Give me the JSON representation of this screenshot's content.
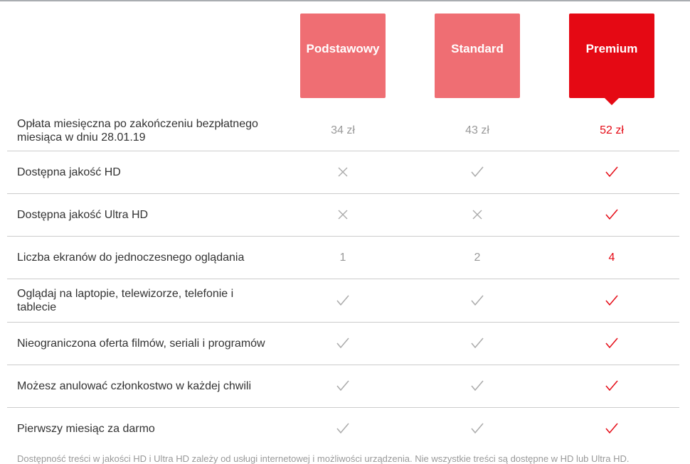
{
  "colors": {
    "plan": "#ef6e73",
    "selected": "#e50914",
    "muted": "#999999"
  },
  "plans": [
    {
      "name": "Podstawowy",
      "selected": false
    },
    {
      "name": "Standard",
      "selected": false
    },
    {
      "name": "Premium",
      "selected": true
    }
  ],
  "rows": [
    {
      "label": "Opłata miesięczna po zakończeniu bezpłatnego miesiąca w dniu 28.01.19",
      "values": [
        "34 zł",
        "43 zł",
        "52 zł"
      ]
    },
    {
      "label": "Dostępna jakość HD",
      "values": [
        "cross-icon",
        "check-icon",
        "check-icon"
      ]
    },
    {
      "label": "Dostępna jakość Ultra HD",
      "values": [
        "cross-icon",
        "cross-icon",
        "check-icon"
      ]
    },
    {
      "label": "Liczba ekranów do jednoczesnego oglądania",
      "values": [
        "1",
        "2",
        "4"
      ]
    },
    {
      "label": "Oglądaj na laptopie, telewizorze, telefonie i tablecie",
      "values": [
        "check-icon",
        "check-icon",
        "check-icon"
      ]
    },
    {
      "label": "Nieograniczona oferta filmów, seriali i programów",
      "values": [
        "check-icon",
        "check-icon",
        "check-icon"
      ]
    },
    {
      "label": "Możesz anulować członkostwo w każdej chwili",
      "values": [
        "check-icon",
        "check-icon",
        "check-icon"
      ]
    },
    {
      "label": "Pierwszy miesiąc za darmo",
      "values": [
        "check-icon",
        "check-icon",
        "check-icon"
      ]
    }
  ],
  "footnote": "Dostępność treści w jakości HD i Ultra HD zależy od usługi internetowej i możliwości urządzenia. Nie wszystkie treści są dostępne w HD lub Ultra HD."
}
